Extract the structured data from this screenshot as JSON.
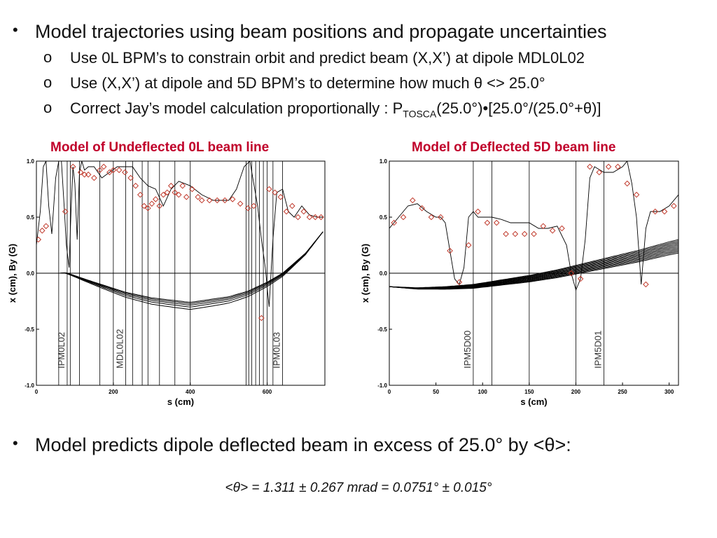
{
  "bullets": {
    "main": "Model trajectories using beam positions and propagate uncertainties",
    "sub1": "Use 0L BPM’s to constrain orbit and predict beam (X,X’) at dipole MDL0L02",
    "sub2": "Use (X,X’) at dipole and 5D BPM’s to determine how much θ <> 25.0°",
    "sub3_a": "Correct Jay’s model calculation proportionally : P",
    "sub3_sub": "TOSCA",
    "sub3_b": "(25.0°)•[25.0°/(25.0°+θ)]",
    "bullet_char": "•",
    "sub_char": "o"
  },
  "conclusion": {
    "text": "Model predicts dipole deflected beam in excess of 25.0° by <θ>:",
    "result": "<θ> = 1.311 ± 0.267 mrad = 0.0751° ± 0.015°"
  },
  "colors": {
    "title_red": "#c0002a",
    "marker_red": "#c0392b",
    "curve": "#000000"
  },
  "chart_data": [
    {
      "type": "line",
      "title": "Model of Undeflected 0L beam line",
      "xlabel": "s (cm)",
      "ylabel": "x (cm), By (G)",
      "xlim": [
        0,
        750
      ],
      "ylim": [
        -1.0,
        1.0
      ],
      "xticks": [
        0,
        200,
        400,
        600
      ],
      "yticks": [
        -1.0,
        -0.5,
        0.0,
        0.5,
        1.0
      ],
      "bpm_markers": [
        {
          "s": 80,
          "label": "IPM0L02"
        },
        {
          "s": 232,
          "label": "MDL0L02"
        },
        {
          "s": 640,
          "label": "IPM0L03"
        }
      ],
      "vertical_lines": [
        58,
        80,
        88,
        112,
        165,
        200,
        232,
        250,
        275,
        290,
        320,
        360,
        400,
        545,
        552,
        560,
        570,
        580,
        590,
        600,
        615,
        640
      ],
      "trajectory_spread": [
        0.0,
        0.008,
        0.018,
        0.03,
        0.045
      ],
      "trajectory": {
        "s": [
          60,
          75,
          90,
          150,
          232,
          300,
          400,
          500,
          550,
          600,
          640,
          700,
          745
        ],
        "x": [
          0.0,
          0.005,
          -0.01,
          -0.08,
          -0.17,
          -0.22,
          -0.26,
          -0.21,
          -0.16,
          -0.08,
          0.0,
          0.18,
          0.37
        ]
      },
      "field_curve": {
        "s": [
          0,
          10,
          18,
          25,
          32,
          40,
          50,
          58,
          65,
          72,
          78,
          85,
          90,
          95,
          100,
          106,
          112,
          118,
          125,
          135,
          150,
          170,
          190,
          210,
          230,
          250,
          270,
          290,
          310,
          330,
          350,
          370,
          400,
          430,
          460,
          500,
          520,
          540,
          555,
          565,
          575,
          585,
          595,
          605,
          615,
          625,
          640,
          655,
          670,
          690,
          710,
          730,
          745
        ],
        "x": [
          0.25,
          0.55,
          0.95,
          1.0,
          0.6,
          0.35,
          0.85,
          1.0,
          1.0,
          0.6,
          0.25,
          0.05,
          0.55,
          0.95,
          0.8,
          0.3,
          0.9,
          1.0,
          0.92,
          0.95,
          0.95,
          0.85,
          0.9,
          0.95,
          0.95,
          0.95,
          0.85,
          0.78,
          0.75,
          0.6,
          0.75,
          0.82,
          0.78,
          0.7,
          0.65,
          0.65,
          0.75,
          0.95,
          1.0,
          0.8,
          0.6,
          0.3,
          0.05,
          -0.3,
          0.3,
          0.72,
          0.75,
          0.55,
          0.5,
          0.6,
          0.52,
          0.5,
          0.5
        ]
      },
      "data_points": {
        "s": [
          5,
          15,
          25,
          75,
          95,
          115,
          125,
          135,
          150,
          165,
          175,
          190,
          200,
          215,
          230,
          245,
          258,
          270,
          280,
          290,
          300,
          310,
          320,
          330,
          340,
          350,
          360,
          370,
          380,
          390,
          405,
          420,
          430,
          450,
          470,
          490,
          510,
          530,
          550,
          565,
          585,
          605,
          620,
          635,
          650,
          665,
          680,
          695,
          710,
          725,
          740
        ],
        "x": [
          0.3,
          0.38,
          0.42,
          0.55,
          0.95,
          0.9,
          0.88,
          0.88,
          0.85,
          0.92,
          0.95,
          0.9,
          0.92,
          0.92,
          0.9,
          0.85,
          0.78,
          0.7,
          0.6,
          0.58,
          0.62,
          0.66,
          0.6,
          0.7,
          0.72,
          0.78,
          0.72,
          0.7,
          0.78,
          0.68,
          0.75,
          0.68,
          0.65,
          0.65,
          0.65,
          0.65,
          0.66,
          0.62,
          0.58,
          0.6,
          -0.4,
          0.75,
          0.72,
          0.68,
          0.55,
          0.6,
          0.5,
          0.55,
          0.5,
          0.5,
          0.5
        ]
      }
    },
    {
      "type": "line",
      "title": "Model of Deflected 5D beam line",
      "xlabel": "s (cm)",
      "ylabel": "x (cm), By (G)",
      "xlim": [
        0,
        310
      ],
      "ylim": [
        -1.0,
        1.0
      ],
      "xticks": [
        0,
        50,
        100,
        150,
        200,
        250,
        300
      ],
      "yticks": [
        -1.0,
        -0.5,
        0.0,
        0.5,
        1.0
      ],
      "bpm_markers": [
        {
          "s": 90,
          "label": "IPM5D00"
        },
        {
          "s": 230,
          "label": "IPM5D01"
        }
      ],
      "vertical_lines": [
        90,
        110,
        150,
        200,
        230
      ],
      "trajectory_spread": [
        0.0,
        0.012,
        0.024,
        0.036,
        0.048,
        0.06,
        0.072,
        0.084,
        0.096,
        0.108,
        0.12
      ],
      "trajectory": {
        "s": [
          0,
          30,
          60,
          90,
          120,
          150,
          180,
          210,
          240,
          270,
          300,
          310
        ],
        "x": [
          -0.12,
          -0.13,
          -0.12,
          -0.1,
          -0.06,
          -0.02,
          0.03,
          0.09,
          0.15,
          0.21,
          0.28,
          0.3
        ]
      },
      "field_curve": {
        "s": [
          0,
          10,
          20,
          30,
          40,
          50,
          55,
          60,
          65,
          70,
          75,
          80,
          85,
          90,
          95,
          100,
          110,
          120,
          130,
          140,
          150,
          160,
          170,
          180,
          190,
          195,
          200,
          205,
          210,
          215,
          220,
          230,
          240,
          250,
          255,
          260,
          265,
          270,
          275,
          280,
          290,
          300,
          310
        ],
        "x": [
          0.4,
          0.5,
          0.6,
          0.62,
          0.55,
          0.5,
          0.5,
          0.45,
          0.2,
          -0.05,
          -0.1,
          0.05,
          0.5,
          0.55,
          0.5,
          0.5,
          0.5,
          0.48,
          0.45,
          0.45,
          0.45,
          0.4,
          0.4,
          0.42,
          0.25,
          0.0,
          -0.15,
          -0.05,
          0.3,
          0.85,
          0.95,
          0.9,
          0.9,
          0.95,
          1.0,
          0.8,
          0.5,
          -0.1,
          0.4,
          0.55,
          0.55,
          0.6,
          0.7
        ]
      },
      "data_points": {
        "s": [
          5,
          15,
          25,
          35,
          45,
          55,
          65,
          75,
          85,
          95,
          105,
          115,
          125,
          135,
          145,
          155,
          165,
          175,
          185,
          195,
          205,
          215,
          225,
          235,
          245,
          255,
          265,
          275,
          285,
          295,
          305
        ],
        "x": [
          0.45,
          0.5,
          0.65,
          0.58,
          0.5,
          0.5,
          0.2,
          -0.08,
          0.25,
          0.55,
          0.45,
          0.45,
          0.35,
          0.35,
          0.35,
          0.35,
          0.42,
          0.38,
          0.4,
          0.0,
          -0.05,
          0.95,
          0.9,
          0.95,
          0.95,
          0.8,
          0.7,
          -0.1,
          0.55,
          0.55,
          0.6
        ]
      }
    }
  ]
}
